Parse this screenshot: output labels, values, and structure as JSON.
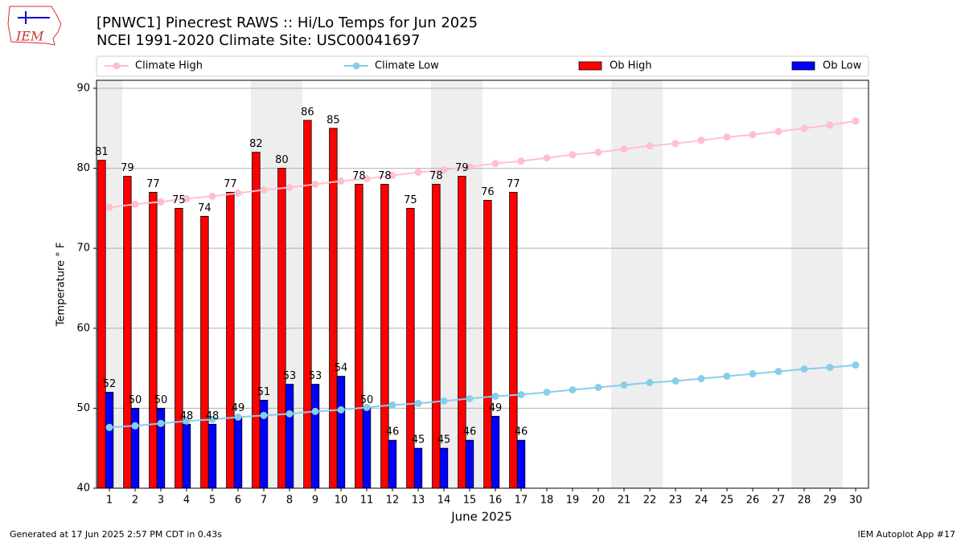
{
  "logo_text": "IEM",
  "chart_data": {
    "type": "bar",
    "title": "[PNWC1] Pinecrest RAWS :: Hi/Lo Temps for Jun 2025",
    "subtitle": "NCEI 1991-2020 Climate Site: USC00041697",
    "x_label": "June 2025",
    "y_label": "Temperature ° F",
    "x": [
      1,
      2,
      3,
      4,
      5,
      6,
      7,
      8,
      9,
      10,
      11,
      12,
      13,
      14,
      15,
      16,
      17,
      18,
      19,
      20,
      21,
      22,
      23,
      24,
      25,
      26,
      27,
      28,
      29,
      30
    ],
    "xlim": [
      0.5,
      30.5
    ],
    "ylim": [
      40,
      91
    ],
    "yticks": [
      40,
      50,
      60,
      70,
      80,
      90
    ],
    "grid": true,
    "shaded_days": [
      1,
      7,
      8,
      14,
      15,
      21,
      22,
      28,
      29
    ],
    "series": [
      {
        "name": "Climate High",
        "type": "line",
        "color": "#ffc0cb",
        "values": [
          75.1,
          75.5,
          75.8,
          76.2,
          76.5,
          76.9,
          77.3,
          77.6,
          78.0,
          78.4,
          78.7,
          79.1,
          79.5,
          79.8,
          80.2,
          80.6,
          80.9,
          81.3,
          81.7,
          82.0,
          82.4,
          82.8,
          83.1,
          83.5,
          83.9,
          84.2,
          84.6,
          85.0,
          85.4,
          85.9
        ]
      },
      {
        "name": "Climate Low",
        "type": "line",
        "color": "#87ceeb",
        "values": [
          47.6,
          47.8,
          48.1,
          48.4,
          48.6,
          48.9,
          49.1,
          49.3,
          49.6,
          49.8,
          50.1,
          50.4,
          50.6,
          50.9,
          51.2,
          51.5,
          51.7,
          52.0,
          52.3,
          52.6,
          52.9,
          53.2,
          53.4,
          53.7,
          54.0,
          54.3,
          54.6,
          54.9,
          55.1,
          55.4
        ]
      },
      {
        "name": "Ob High",
        "type": "bar",
        "color": "#ff0000",
        "values": [
          81,
          79,
          77,
          75,
          74,
          77,
          82,
          80,
          86,
          85,
          78,
          78,
          75,
          78,
          79,
          76,
          77,
          null,
          null,
          null,
          null,
          null,
          null,
          null,
          null,
          null,
          null,
          null,
          null,
          null
        ]
      },
      {
        "name": "Ob Low",
        "type": "bar",
        "color": "#0000ff",
        "values": [
          52,
          50,
          50,
          48,
          48,
          49,
          51,
          53,
          53,
          54,
          50,
          46,
          45,
          45,
          46,
          49,
          46,
          null,
          null,
          null,
          null,
          null,
          null,
          null,
          null,
          null,
          null,
          null,
          null,
          null
        ]
      }
    ],
    "footer_left": "Generated at 17 Jun 2025 2:57 PM CDT in 0.43s",
    "footer_right": "IEM Autoplot App #17"
  }
}
